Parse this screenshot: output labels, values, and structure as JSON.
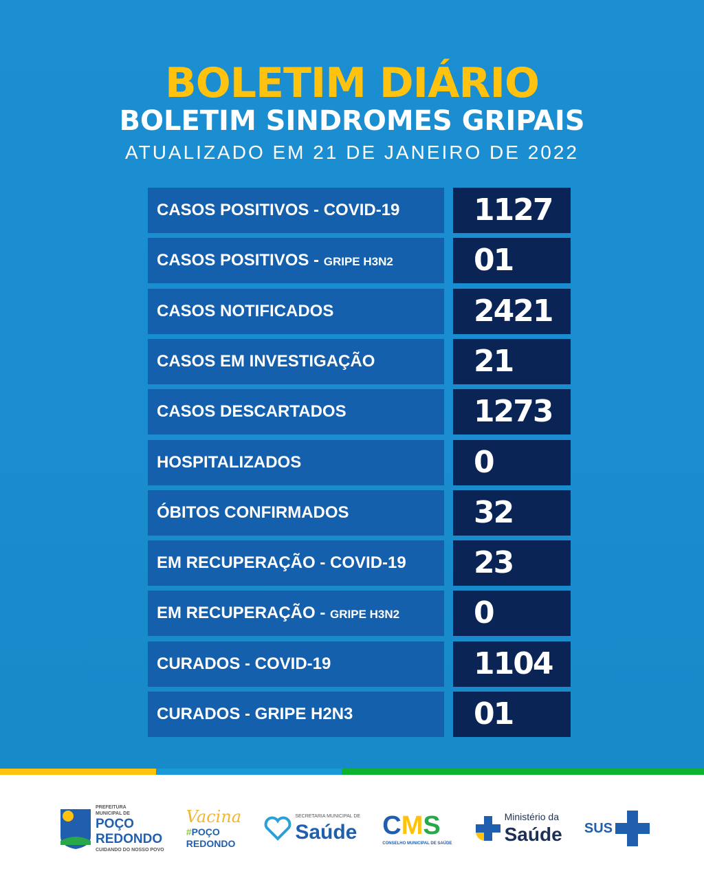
{
  "header": {
    "title": "BOLETIM DIÁRIO",
    "subtitle": "BOLETIM SINDROMES GRIPAIS",
    "updated": "ATUALIZADO EM 21 DE JANEIRO DE 2022"
  },
  "rows": [
    {
      "label": "CASOS POSITIVOS - COVID-19",
      "suffix": "",
      "value": "1127"
    },
    {
      "label": "CASOS POSITIVOS - ",
      "suffix": "GRIPE H3N2",
      "value": "01"
    },
    {
      "label": "CASOS NOTIFICADOS",
      "suffix": "",
      "value": "2421"
    },
    {
      "label": "CASOS EM INVESTIGAÇÃO",
      "suffix": "",
      "value": "21"
    },
    {
      "label": "CASOS DESCARTADOS",
      "suffix": "",
      "value": "1273"
    },
    {
      "label": "HOSPITALIZADOS",
      "suffix": "",
      "value": "0"
    },
    {
      "label": "ÓBITOS CONFIRMADOS",
      "suffix": "",
      "value": "32"
    },
    {
      "label": "EM RECUPERAÇÃO - COVID-19",
      "suffix": "",
      "value": "23"
    },
    {
      "label": "EM RECUPERAÇÃO - ",
      "suffix": "GRIPE H3N2",
      "value": "0"
    },
    {
      "label": "CURADOS - COVID-19",
      "suffix": "",
      "value": "1104"
    },
    {
      "label": "CURADOS - GRIPE H2N3",
      "suffix": "",
      "value": "01"
    }
  ],
  "footer": {
    "logos": [
      {
        "name": "PREFEITURA MUNICIPAL DE POÇO REDONDO",
        "tagline": "CUIDANDO DO NOSSO POVO"
      },
      {
        "name": "Vacina #POÇO REDONDO"
      },
      {
        "name": "SECRETARIA MUNICIPAL DE Saúde"
      },
      {
        "name": "CMS",
        "tagline": "CONSELHO MUNICIPAL DE SAÚDE"
      },
      {
        "name": "Ministério da Saúde"
      },
      {
        "name": "SUS"
      }
    ]
  },
  "colors": {
    "background": "#1a8ccf",
    "label_box": "#1560ad",
    "value_box": "#0b2456",
    "title": "#ffc20e",
    "stripe_yellow": "#ffc20e",
    "stripe_blue": "#1a9ad8",
    "stripe_green": "#0db22e"
  }
}
